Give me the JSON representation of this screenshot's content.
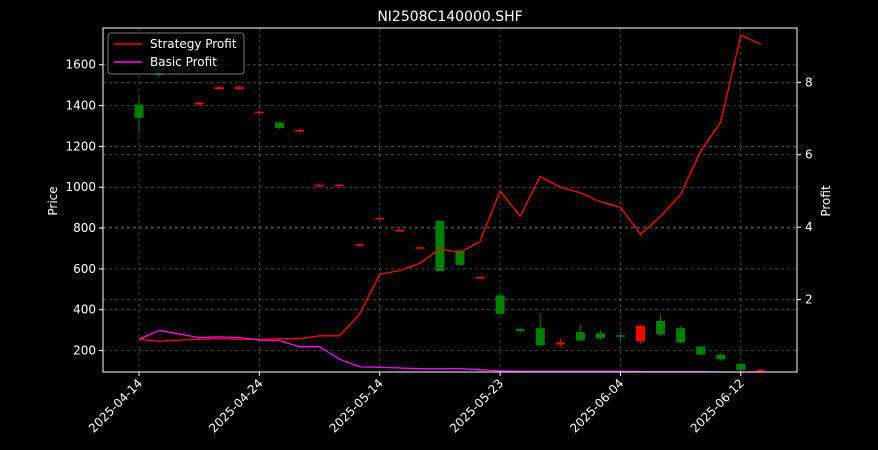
{
  "chart_data": {
    "type": "candlestick+line",
    "title": "NI2508C140000.SHF",
    "ylabel_left": "Price",
    "ylabel_right": "Profit",
    "ylim_left": [
      95,
      1780
    ],
    "ylim_right": [
      0,
      9.5
    ],
    "yticks_left": [
      200,
      400,
      600,
      800,
      1000,
      1200,
      1400,
      1600
    ],
    "yticks_right": [
      2,
      4,
      6,
      8
    ],
    "grid": true,
    "legend_position": "upper-left",
    "x_tick_labels": [
      {
        "index": 0,
        "label": "2025-04-14"
      },
      {
        "index": 6,
        "label": "2025-04-24"
      },
      {
        "index": 12,
        "label": "2025-05-14"
      },
      {
        "index": 18,
        "label": "2025-05-23"
      },
      {
        "index": 24,
        "label": "2025-06-04"
      },
      {
        "index": 30,
        "label": "2025-06-12"
      }
    ],
    "candles": [
      {
        "open": 1340,
        "high": 1440,
        "low": 1260,
        "close": 1405
      },
      {
        "open": 1550,
        "high": 1760,
        "low": 1540,
        "close": 1580
      },
      {
        "open": 1560,
        "high": 1580,
        "low": 1550,
        "close": 1575
      },
      {
        "open": 1415,
        "high": 1420,
        "low": 1405,
        "close": 1405
      },
      {
        "open": 1490,
        "high": 1495,
        "low": 1480,
        "close": 1480
      },
      {
        "open": 1490,
        "high": 1495,
        "low": 1480,
        "close": 1480
      },
      {
        "open": 1370,
        "high": 1375,
        "low": 1365,
        "close": 1365
      },
      {
        "open": 1290,
        "high": 1320,
        "low": 1285,
        "close": 1318
      },
      {
        "open": 1280,
        "high": 1285,
        "low": 1275,
        "close": 1275
      },
      {
        "open": 1012,
        "high": 1015,
        "low": 1008,
        "close": 1008
      },
      {
        "open": 1012,
        "high": 1015,
        "low": 1008,
        "close": 1008
      },
      {
        "open": 720,
        "high": 724,
        "low": 716,
        "close": 716
      },
      {
        "open": 850,
        "high": 855,
        "low": 845,
        "close": 845
      },
      {
        "open": 790,
        "high": 795,
        "low": 785,
        "close": 785
      },
      {
        "open": 706,
        "high": 710,
        "low": 702,
        "close": 702
      },
      {
        "open": 590,
        "high": 840,
        "low": 590,
        "close": 835
      },
      {
        "open": 620,
        "high": 700,
        "low": 620,
        "close": 690
      },
      {
        "open": 560,
        "high": 565,
        "low": 555,
        "close": 555
      },
      {
        "open": 380,
        "high": 480,
        "low": 380,
        "close": 470
      },
      {
        "open": 295,
        "high": 310,
        "low": 285,
        "close": 305
      },
      {
        "open": 225,
        "high": 380,
        "low": 225,
        "close": 310
      },
      {
        "open": 240,
        "high": 260,
        "low": 215,
        "close": 230
      },
      {
        "open": 250,
        "high": 330,
        "low": 245,
        "close": 290
      },
      {
        "open": 260,
        "high": 300,
        "low": 250,
        "close": 285
      },
      {
        "open": 275,
        "high": 290,
        "low": 240,
        "close": 275
      },
      {
        "open": 320,
        "high": 325,
        "low": 235,
        "close": 245
      },
      {
        "open": 280,
        "high": 375,
        "low": 270,
        "close": 345
      },
      {
        "open": 240,
        "high": 320,
        "low": 235,
        "close": 310
      },
      {
        "open": 180,
        "high": 220,
        "low": 175,
        "close": 220
      },
      {
        "open": 158,
        "high": 190,
        "low": 150,
        "close": 180
      },
      {
        "open": 105,
        "high": 140,
        "low": 100,
        "close": 135
      },
      {
        "open": 106,
        "high": 108,
        "low": 100,
        "close": 100
      }
    ],
    "series": [
      {
        "name": "Strategy Profit",
        "color": "#ff0000",
        "axis": "right",
        "values": [
          0.9,
          0.85,
          0.88,
          0.9,
          0.92,
          0.9,
          0.9,
          0.92,
          0.92,
          1.0,
          1.0,
          1.6,
          2.7,
          2.8,
          3.0,
          3.4,
          3.3,
          3.6,
          5.0,
          4.3,
          5.4,
          5.1,
          4.95,
          4.7,
          4.55,
          3.8,
          4.3,
          4.9,
          6.1,
          6.9,
          9.3,
          9.05
        ]
      },
      {
        "name": "Basic Profit",
        "color": "#ff00ff",
        "axis": "right",
        "values": [
          0.9,
          1.15,
          1.05,
          0.95,
          0.97,
          0.95,
          0.88,
          0.87,
          0.7,
          0.7,
          0.35,
          0.14,
          0.13,
          0.11,
          0.09,
          0.09,
          0.09,
          0.06,
          0.03,
          0.02,
          0.02,
          0.02,
          0.02,
          0.02,
          0.02,
          0.01,
          0.01,
          0.01,
          0.01,
          0.0,
          0.0,
          0.0
        ]
      }
    ],
    "colors": {
      "background": "#000000",
      "up_candle": "#008000",
      "down_candle": "#ff0000",
      "grid": "#808080",
      "axes": "#ffffff"
    }
  }
}
